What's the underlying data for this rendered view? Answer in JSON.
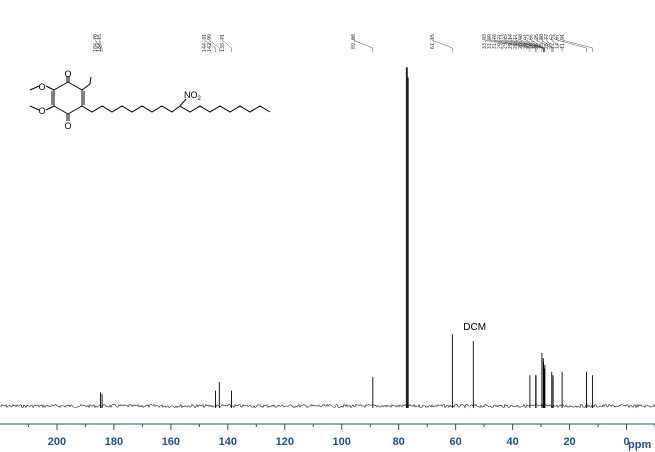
{
  "chart_data": {
    "type": "line",
    "title": "",
    "xlabel": "ppm",
    "ylabel": "",
    "xlim": [
      220,
      -10
    ],
    "x_reversed": true,
    "x_ticks": [
      200,
      180,
      160,
      140,
      120,
      100,
      80,
      60,
      40,
      20,
      0
    ],
    "grid": false,
    "colors": {
      "axis": "#1a4f9c",
      "trace": "#000000"
    },
    "peak_labels": [
      "184.70",
      "184.15",
      "144.31",
      "142.99",
      "138.71",
      "89.08",
      "61.15",
      "33.93",
      "31.89",
      "31.78",
      "29.71",
      "29.23",
      "29.14",
      "29.11",
      "28.98",
      "28.91",
      "28.66",
      "26.25",
      "25.80",
      "25.77",
      "22.62",
      "14.07",
      "11.91"
    ],
    "peaks": [
      {
        "ppm": 184.7,
        "h": 0.04
      },
      {
        "ppm": 184.15,
        "h": 0.035
      },
      {
        "ppm": 144.31,
        "h": 0.045
      },
      {
        "ppm": 142.99,
        "h": 0.07
      },
      {
        "ppm": 138.71,
        "h": 0.045
      },
      {
        "ppm": 89.08,
        "h": 0.085
      },
      {
        "ppm": 77.32,
        "h": 0.99
      },
      {
        "ppm": 77.0,
        "h": 0.99
      },
      {
        "ppm": 76.68,
        "h": 0.96
      },
      {
        "ppm": 61.15,
        "h": 0.21
      },
      {
        "ppm": 53.8,
        "h": 0.19
      },
      {
        "ppm": 33.93,
        "h": 0.09
      },
      {
        "ppm": 31.89,
        "h": 0.09
      },
      {
        "ppm": 31.78,
        "h": 0.09
      },
      {
        "ppm": 29.71,
        "h": 0.155
      },
      {
        "ppm": 29.23,
        "h": 0.14
      },
      {
        "ppm": 29.14,
        "h": 0.13
      },
      {
        "ppm": 29.11,
        "h": 0.12
      },
      {
        "ppm": 28.98,
        "h": 0.11
      },
      {
        "ppm": 28.91,
        "h": 0.1
      },
      {
        "ppm": 28.66,
        "h": 0.12
      },
      {
        "ppm": 26.25,
        "h": 0.1
      },
      {
        "ppm": 25.8,
        "h": 0.09
      },
      {
        "ppm": 25.77,
        "h": 0.08
      },
      {
        "ppm": 22.62,
        "h": 0.1
      },
      {
        "ppm": 14.07,
        "h": 0.1
      },
      {
        "ppm": 11.91,
        "h": 0.09
      }
    ],
    "annotations": [
      {
        "text": "DCM",
        "ppm": 53.8
      }
    ],
    "structure": {
      "labels": [
        "O",
        "O",
        "O",
        "O"
      ],
      "nitro_label": "NO",
      "nitro_subscript": "2"
    }
  }
}
